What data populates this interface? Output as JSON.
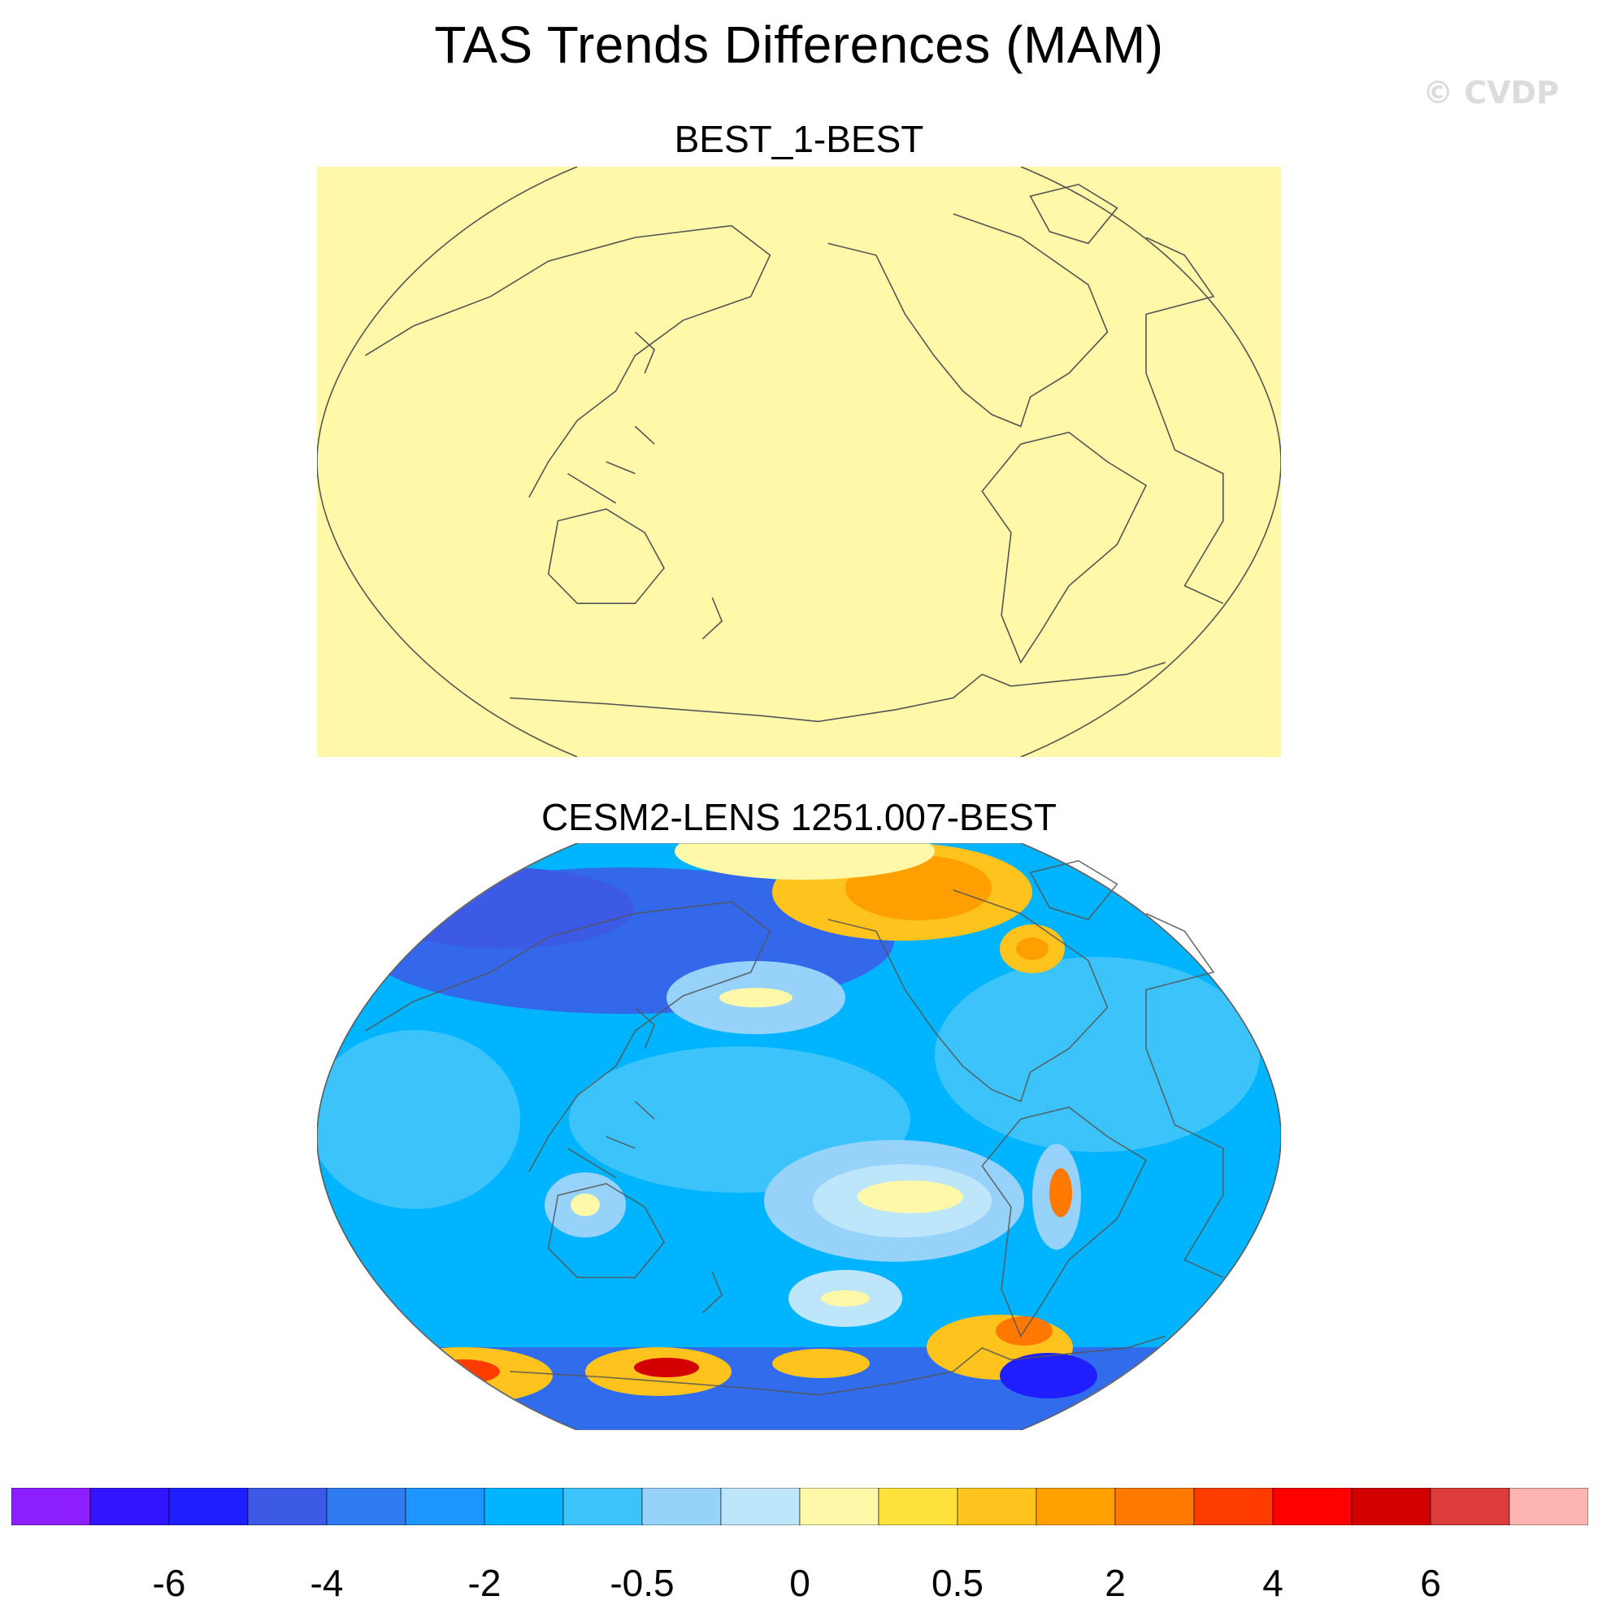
{
  "title": "TAS Trends Differences (MAM)",
  "watermark": "© CVDP",
  "colors": {
    "background": "#ffffff",
    "coast": "#555555",
    "zero_fill": "#fff8a8"
  },
  "chart_data": [
    {
      "type": "heatmap",
      "subtitle": "BEST_1-BEST",
      "projection": "Robinson (Pacific-centered)",
      "field": "uniform",
      "value_range": [
        0,
        0.25
      ]
    },
    {
      "type": "heatmap",
      "subtitle": "CESM2-LENS 1251.007-BEST",
      "projection": "Robinson (Pacific-centered)",
      "field": "mostly negative (-2 to -0.5) with positive patches over Arctic/Greenland, central Pacific and Antarctic coast",
      "value_range": [
        -6,
        6
      ]
    }
  ],
  "colorbar": {
    "colors": [
      "#8c1eff",
      "#3214ff",
      "#1e1eff",
      "#3c5ae6",
      "#2f7cf0",
      "#1e96ff",
      "#00b4ff",
      "#3cc3fa",
      "#96d2fa",
      "#bee6fa",
      "#fff8a8",
      "#ffe13c",
      "#ffc31e",
      "#ffa000",
      "#ff7800",
      "#ff3c00",
      "#ff0000",
      "#d20000",
      "#dc3c3c",
      "#ffb4b4"
    ],
    "tick_labels": [
      "-6",
      "-4",
      "-2",
      "-0.5",
      "0",
      "0.5",
      "2",
      "4",
      "6"
    ]
  }
}
